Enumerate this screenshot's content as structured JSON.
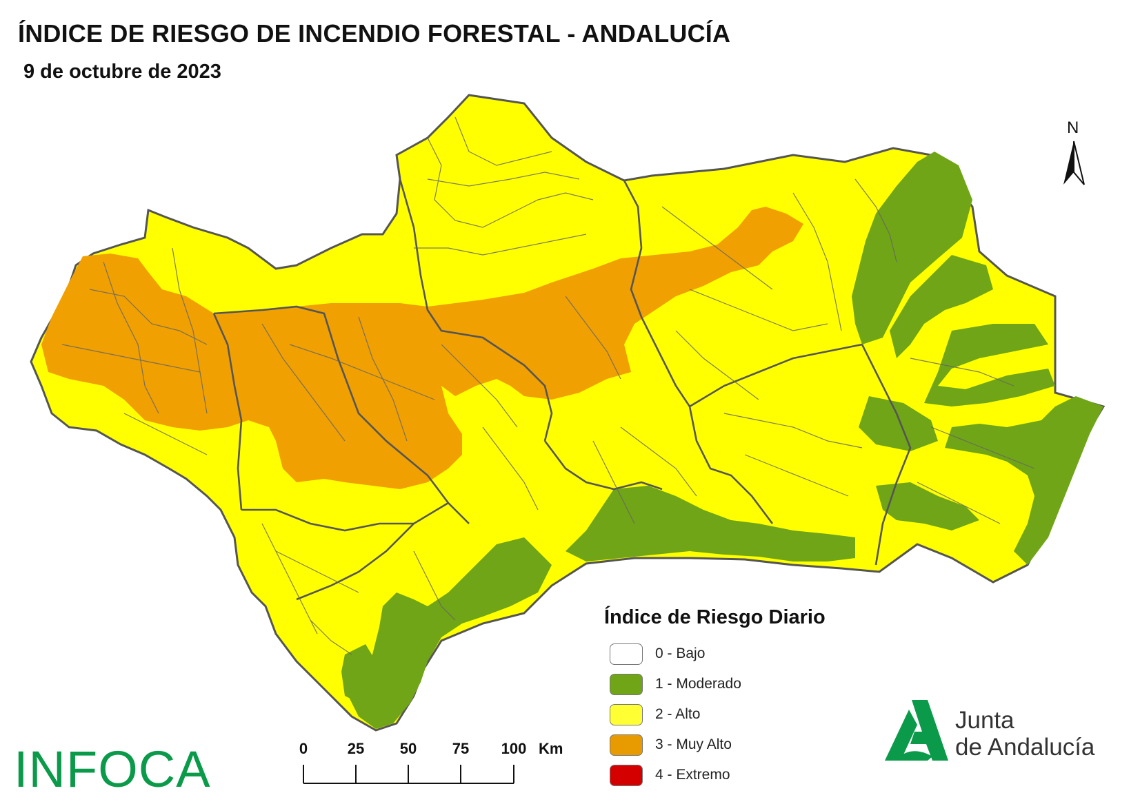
{
  "map": {
    "title": "ÍNDICE DE RIESGO DE INCENDIO FORESTAL - ANDALUCÍA",
    "date": "9 de octubre de 2023",
    "north_label": "N",
    "colors": {
      "bajo": "#ffffff",
      "moderado": "#6fa516",
      "alto": "#ffff00",
      "muy_alto": "#f0a000",
      "extremo": "#d40000",
      "boundary": "#555555"
    }
  },
  "legend": {
    "title": "Índice de Riesgo Diario",
    "items": [
      {
        "label": "0 - Bajo",
        "color": "#ffffff"
      },
      {
        "label": "1 - Moderado",
        "color": "#6fa516"
      },
      {
        "label": "2 - Alto",
        "color": "#ffff33"
      },
      {
        "label": "3 - Muy Alto",
        "color": "#e89b00"
      },
      {
        "label": "4 - Extremo",
        "color": "#d40000"
      }
    ]
  },
  "scale": {
    "ticks": [
      "0",
      "25",
      "50",
      "75",
      "100"
    ],
    "unit": "Km"
  },
  "logos": {
    "infoca": "INFOCA",
    "junta_line1": "Junta",
    "junta_line2": "de Andalucía",
    "junta_color": "#0a9a4a"
  }
}
